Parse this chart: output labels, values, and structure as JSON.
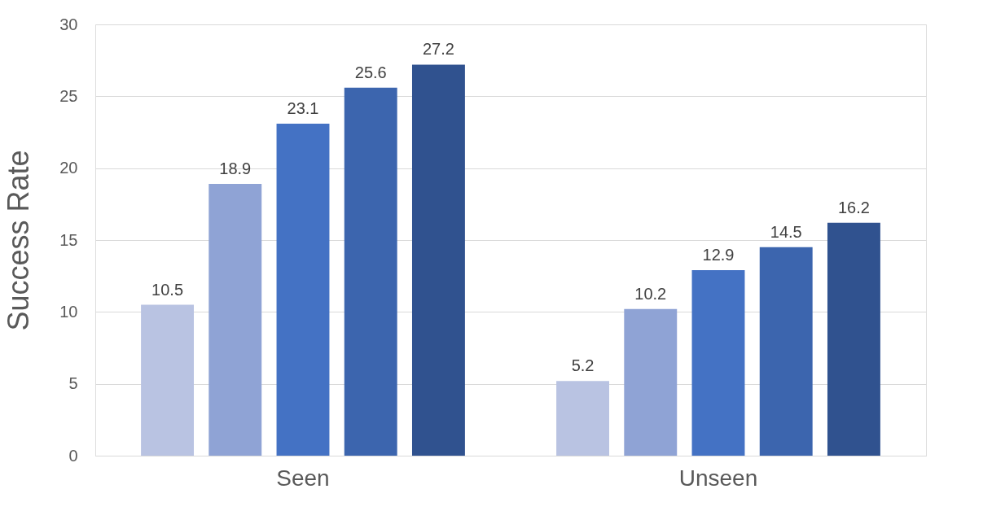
{
  "chart_data": {
    "type": "bar",
    "ylabel": "Success Rate",
    "categories": [
      "Seen",
      "Unseen"
    ],
    "series": [
      {
        "color": "#b9c3e2",
        "values": [
          10.5,
          5.2
        ]
      },
      {
        "color": "#8fa3d5",
        "values": [
          18.9,
          10.2
        ]
      },
      {
        "color": "#4472c4",
        "values": [
          23.1,
          12.9
        ]
      },
      {
        "color": "#3c65ae",
        "values": [
          25.6,
          14.5
        ]
      },
      {
        "color": "#30528f",
        "values": [
          27.2,
          16.2
        ]
      }
    ],
    "ylim": [
      0,
      30
    ],
    "yticks": [
      0,
      5,
      10,
      15,
      20,
      25,
      30
    ],
    "grid": "y",
    "data_labels": true
  }
}
